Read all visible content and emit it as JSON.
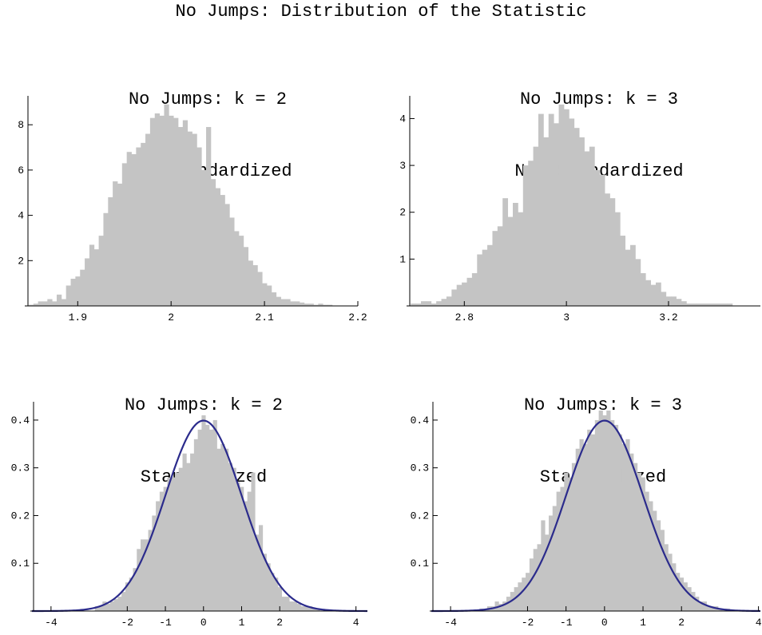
{
  "title": "No Jumps: Distribution of the Statistic",
  "colors": {
    "bars": "#c4c4c4",
    "curve": "#2b2b8c",
    "axis": "#000000"
  },
  "chart_data": [
    {
      "type": "bar",
      "title": "No Jumps: k = 2",
      "subtitle": "Non-Standardized",
      "x_ticks": [
        1.9,
        2,
        2.1,
        2.2
      ],
      "x_tick_labels": [
        "1.9",
        "2",
        "2.1",
        "2.2"
      ],
      "y_ticks": [
        2,
        4,
        6,
        8
      ],
      "y_tick_labels": [
        "2",
        "4",
        "6",
        "8"
      ],
      "xlim": [
        1.845,
        2.2
      ],
      "ylim": [
        0,
        9.1
      ],
      "bin_width": 0.005,
      "x": [
        1.85,
        1.855,
        1.86,
        1.865,
        1.87,
        1.875,
        1.88,
        1.885,
        1.89,
        1.895,
        1.9,
        1.905,
        1.91,
        1.915,
        1.92,
        1.925,
        1.93,
        1.935,
        1.94,
        1.945,
        1.95,
        1.955,
        1.96,
        1.965,
        1.97,
        1.975,
        1.98,
        1.985,
        1.99,
        1.995,
        2.0,
        2.005,
        2.01,
        2.015,
        2.02,
        2.025,
        2.03,
        2.035,
        2.04,
        2.045,
        2.05,
        2.055,
        2.06,
        2.065,
        2.07,
        2.075,
        2.08,
        2.085,
        2.09,
        2.095,
        2.1,
        2.105,
        2.11,
        2.115,
        2.12,
        2.125,
        2.13,
        2.135,
        2.14,
        2.145,
        2.15,
        2.155,
        2.16,
        2.165,
        2.17
      ],
      "values": [
        0.05,
        0.1,
        0.2,
        0.2,
        0.3,
        0.2,
        0.5,
        0.3,
        0.9,
        1.2,
        1.3,
        1.6,
        2.1,
        2.7,
        2.5,
        3.1,
        4.1,
        4.8,
        5.5,
        5.4,
        6.3,
        6.8,
        6.7,
        7.0,
        7.2,
        7.6,
        8.3,
        8.5,
        8.4,
        8.9,
        8.4,
        8.3,
        7.9,
        8.2,
        7.7,
        7.6,
        7.0,
        6.0,
        7.9,
        5.6,
        5.2,
        4.9,
        4.5,
        3.9,
        3.3,
        3.1,
        2.6,
        2.0,
        1.8,
        1.5,
        1.0,
        0.9,
        0.6,
        0.4,
        0.3,
        0.3,
        0.2,
        0.2,
        0.15,
        0.1,
        0.1,
        0.05,
        0.1,
        0.05,
        0.05
      ]
    },
    {
      "type": "bar",
      "title": "No Jumps: k = 3",
      "subtitle": "Non-Standardized",
      "x_ticks": [
        2.8,
        3,
        3.2
      ],
      "x_tick_labels": [
        "2.8",
        "3",
        "3.2"
      ],
      "y_ticks": [
        1,
        2,
        3,
        4
      ],
      "y_tick_labels": [
        "1",
        "2",
        "3",
        "4"
      ],
      "xlim": [
        2.69,
        3.38
      ],
      "ylim": [
        0,
        4.4
      ],
      "bin_width": 0.01,
      "x": [
        2.7,
        2.71,
        2.72,
        2.73,
        2.74,
        2.75,
        2.76,
        2.77,
        2.78,
        2.79,
        2.8,
        2.81,
        2.82,
        2.83,
        2.84,
        2.85,
        2.86,
        2.87,
        2.88,
        2.89,
        2.9,
        2.91,
        2.92,
        2.93,
        2.94,
        2.95,
        2.96,
        2.97,
        2.98,
        2.99,
        3.0,
        3.01,
        3.02,
        3.03,
        3.04,
        3.05,
        3.06,
        3.07,
        3.08,
        3.09,
        3.1,
        3.11,
        3.12,
        3.13,
        3.14,
        3.15,
        3.16,
        3.17,
        3.18,
        3.19,
        3.2,
        3.21,
        3.22,
        3.23,
        3.24,
        3.25,
        3.26,
        3.27,
        3.28,
        3.29,
        3.3,
        3.31,
        3.32
      ],
      "values": [
        0.05,
        0.05,
        0.1,
        0.1,
        0.05,
        0.1,
        0.15,
        0.2,
        0.35,
        0.45,
        0.5,
        0.6,
        0.7,
        1.1,
        1.2,
        1.3,
        1.6,
        1.7,
        2.3,
        1.9,
        2.2,
        2.0,
        3.0,
        3.1,
        3.4,
        4.1,
        3.6,
        4.1,
        3.9,
        4.3,
        4.2,
        4.0,
        3.8,
        3.6,
        3.3,
        3.4,
        2.9,
        2.8,
        2.4,
        2.3,
        2.0,
        1.5,
        1.2,
        1.3,
        1.0,
        0.7,
        0.55,
        0.45,
        0.5,
        0.3,
        0.2,
        0.2,
        0.15,
        0.1,
        0.05,
        0.05,
        0.05,
        0.05,
        0.05,
        0.05,
        0.05,
        0.05,
        0.05
      ]
    },
    {
      "type": "bar",
      "title": "No Jumps: k = 2",
      "subtitle": "Standardized",
      "x_ticks": [
        -4,
        -2,
        -1,
        0,
        1,
        2,
        4
      ],
      "x_tick_labels": [
        "-4",
        "-2",
        "-1",
        "0",
        "1",
        "2",
        "4"
      ],
      "y_ticks": [
        0.1,
        0.2,
        0.3,
        0.4
      ],
      "y_tick_labels": [
        "0.1",
        "0.2",
        "0.3",
        "0.4"
      ],
      "xlim": [
        -4.5,
        4.3
      ],
      "ylim": [
        0,
        0.43
      ],
      "bin_width": 0.1,
      "x": [
        -2.8,
        -2.7,
        -2.6,
        -2.5,
        -2.4,
        -2.3,
        -2.2,
        -2.1,
        -2.0,
        -1.9,
        -1.8,
        -1.7,
        -1.6,
        -1.5,
        -1.4,
        -1.3,
        -1.2,
        -1.1,
        -1.0,
        -0.9,
        -0.8,
        -0.7,
        -0.6,
        -0.5,
        -0.4,
        -0.3,
        -0.2,
        -0.1,
        0.0,
        0.1,
        0.2,
        0.3,
        0.4,
        0.5,
        0.6,
        0.7,
        0.8,
        0.9,
        1.0,
        1.1,
        1.2,
        1.3,
        1.4,
        1.5,
        1.6,
        1.7,
        1.8,
        1.9,
        2.0,
        2.1,
        2.2,
        2.3,
        2.4,
        2.5,
        2.6,
        2.7,
        2.8,
        2.9,
        3.0
      ],
      "values": [
        0.01,
        0.01,
        0.02,
        0.015,
        0.02,
        0.025,
        0.03,
        0.04,
        0.06,
        0.07,
        0.09,
        0.13,
        0.15,
        0.15,
        0.17,
        0.2,
        0.23,
        0.25,
        0.26,
        0.28,
        0.28,
        0.29,
        0.3,
        0.33,
        0.31,
        0.33,
        0.36,
        0.38,
        0.41,
        0.39,
        0.38,
        0.4,
        0.34,
        0.35,
        0.34,
        0.31,
        0.3,
        0.27,
        0.26,
        0.23,
        0.25,
        0.29,
        0.16,
        0.18,
        0.12,
        0.1,
        0.08,
        0.07,
        0.05,
        0.03,
        0.03,
        0.02,
        0.02,
        0.015,
        0.01,
        0.01,
        0.01,
        0.005,
        0.005
      ],
      "curve": "standard normal density"
    },
    {
      "type": "bar",
      "title": "No Jumps: k = 3",
      "subtitle": "Standardized",
      "x_ticks": [
        -4,
        -2,
        -1,
        0,
        1,
        2,
        4
      ],
      "x_tick_labels": [
        "-4",
        "-2",
        "-1",
        "0",
        "1",
        "2",
        "4"
      ],
      "y_ticks": [
        0.1,
        0.2,
        0.3,
        0.4
      ],
      "y_tick_labels": [
        "0.1",
        "0.2",
        "0.3",
        "0.4"
      ],
      "xlim": [
        -4.5,
        4.05
      ],
      "ylim": [
        0,
        0.43
      ],
      "bin_width": 0.1,
      "x": [
        -3.2,
        -3.1,
        -3.0,
        -2.9,
        -2.8,
        -2.7,
        -2.6,
        -2.5,
        -2.4,
        -2.3,
        -2.2,
        -2.1,
        -2.0,
        -1.9,
        -1.8,
        -1.7,
        -1.6,
        -1.5,
        -1.4,
        -1.3,
        -1.2,
        -1.1,
        -1.0,
        -0.9,
        -0.8,
        -0.7,
        -0.6,
        -0.5,
        -0.4,
        -0.3,
        -0.2,
        -0.1,
        0.0,
        0.1,
        0.2,
        0.3,
        0.4,
        0.5,
        0.6,
        0.7,
        0.8,
        0.9,
        1.0,
        1.1,
        1.2,
        1.3,
        1.4,
        1.5,
        1.6,
        1.7,
        1.8,
        1.9,
        2.0,
        2.1,
        2.2,
        2.3,
        2.4,
        2.5,
        2.6,
        2.7,
        2.8,
        2.9,
        3.0,
        3.1,
        3.2
      ],
      "values": [
        0.005,
        0.005,
        0.01,
        0.01,
        0.02,
        0.015,
        0.02,
        0.03,
        0.04,
        0.05,
        0.06,
        0.07,
        0.08,
        0.11,
        0.13,
        0.14,
        0.19,
        0.16,
        0.2,
        0.22,
        0.25,
        0.26,
        0.29,
        0.28,
        0.31,
        0.34,
        0.36,
        0.35,
        0.38,
        0.37,
        0.4,
        0.42,
        0.41,
        0.42,
        0.4,
        0.39,
        0.37,
        0.35,
        0.36,
        0.33,
        0.31,
        0.29,
        0.28,
        0.25,
        0.23,
        0.21,
        0.19,
        0.17,
        0.14,
        0.12,
        0.1,
        0.08,
        0.07,
        0.06,
        0.05,
        0.04,
        0.03,
        0.02,
        0.02,
        0.01,
        0.01,
        0.01,
        0.005,
        0.005,
        0.005
      ],
      "curve": "standard normal density"
    }
  ]
}
